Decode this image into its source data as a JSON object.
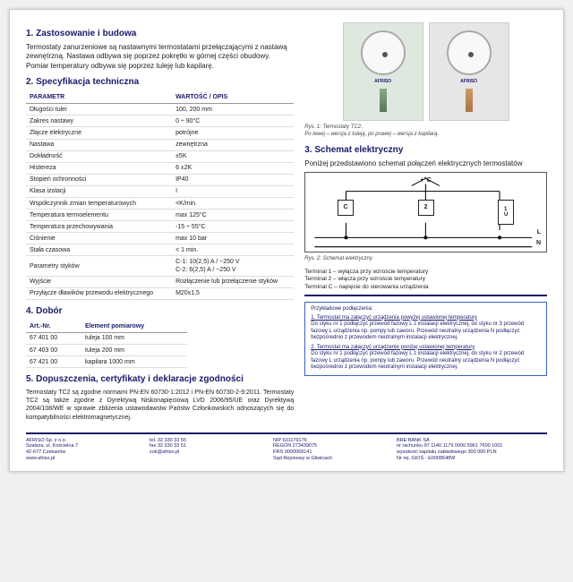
{
  "h1": "1. Zastosowanie i budowa",
  "intro": "Termostaty zanurzeniowe są nastawnymi termostatami przełączającymi z nastawą zewnętrzną. Nastawa odbywa się poprzez pokrętło w górnej części obudowy. Pomiar temperatury odbywa się poprzez tuleję lub kapilarę.",
  "h2": "2. Specyfikacja techniczna",
  "spec_headers": [
    "PARAMETR",
    "WARTOŚĆ / OPIS"
  ],
  "spec_rows": [
    [
      "Długości tulei",
      "100, 200 mm"
    ],
    [
      "Zakres nastawy",
      "0 ÷ 90°C"
    ],
    [
      "Złącze elektryczne",
      "potrójne"
    ],
    [
      "Nastawa",
      "zewnętrzna"
    ],
    [
      "Dokładność",
      "±5K"
    ],
    [
      "Histereza",
      "6 ±2K"
    ],
    [
      "Stopień ochronności",
      "IP40"
    ],
    [
      "Klasa izolacji",
      "I"
    ],
    [
      "Współczynnik zmian temperaturowych",
      "<K/min."
    ],
    [
      "Temperatura termoelementu",
      "max 125°C"
    ],
    [
      "Temperatura przechowywania",
      "-15 ÷ 55°C"
    ],
    [
      "Ciśnienie",
      "max 10 bar"
    ],
    [
      "Stała czasowa",
      "< 1 min."
    ],
    [
      "Parametry styków",
      "C-1: 10(2,5) A / ~250 V\nC-2: 6(2,5) A / ~250 V"
    ],
    [
      "Wyjście",
      "Rozłączenie lub przełączenie styków"
    ],
    [
      "Przyłącze dławików przewodu elektrycznego",
      "M20x1,5"
    ]
  ],
  "fig1_caption": "Rys. 1: Termostaty TC2.\nPo lewej – wersja z tuleją, po prawej – wersja z kapilarą.",
  "brand": "AFRISO",
  "h3": "3. Schemat elektryczny",
  "schem_intro": "Poniżej przedstawiono schemat połączeń elektrycznych termostatów",
  "schem_top": "+°C",
  "term_c": "C",
  "term_2": "2",
  "term_1_box": "1\nU",
  "term_L": "L",
  "term_N": "N",
  "fig2_caption": "Rys. 2: Schemat elektryczny",
  "terminal1": "Terminal 1 – wyłącza przy wzroście temperatury",
  "terminal2": "Terminal 2 – włącza przy wzroście temperatury",
  "terminalC": "Terminal C – napięcie do sterowania urządzenia",
  "h4": "4. Dobór",
  "dobor_headers": [
    "Art.-Nr.",
    "Element pomiarowy"
  ],
  "dobor_rows": [
    [
      "67 401 00",
      "tuleja 100 mm"
    ],
    [
      "67 403 00",
      "tuleja 200 mm"
    ],
    [
      "67 421 00",
      "kapilara 1000 mm"
    ]
  ],
  "h5": "5. Dopuszczenia, certyfikaty i deklaracje zgodności",
  "cert_text": "Termostaty TC2 są zgodne normami PN-EN 60730-1:2012 i PN-EN 60730-2-9:2011. Termostaty TC2 są także zgodne z Dyrektywą Niskonapięciową LVD 2006/95/UE oraz Dyrektywą 2004/108/WE w sprawie zbliżenia ustawodawstw Państw Członkowskich odnoszących się do kompatybilności elektromagnetycznej.",
  "example_title": "Przykładowe podłączenia:",
  "example1_u": "1. Termostat ma załączyć urządzenia powyżej ustawionej temperatury",
  "example1_txt": "Do styku nr 1 podłączyć przewód fazowy L z instalacji elektrycznej, do styku nr 3 przewód fazowy L urządzenia np. pompy lub zaworu. Przewód neutralny urządzenia N podłączyć bezpośrednio z przewodem neutralnym instalacji elektrycznej.",
  "example2_u": "2. Termostat ma załączyć urządzenie poniżej ustawionej temperatury",
  "example2_txt": "Do styku nr 1 podłączyć przewód fazowy L z instalacji elektrycznej, do styku nr 2 przewód fazowy L urządzenia np. pompy lub zaworu. Przewód neutralny urządzenia N podłączyć bezpośrednio z przewodem neutralnym instalacji elektrycznej.",
  "footer": {
    "c1": "AFRISO Sp. z o.o.\nSzałsza, ul. Kościelna 7\n42-677 Czekanów\nwww.afriso.pl",
    "c2": "tel. 32 330 33 55\nfax 32 330 33 51\nzok@afriso.pl",
    "c3": "NIP 631179176\nREGON 273439075\nKRS 0000068141\nSąd Rejonowy w Gliwicach",
    "c4": "BRE BANK SA\nnr rachunku 97 1140 1179 0000 5961 7600 1001\nwysokość kapitału zakładowego 300 000 PLN\nNr rej. GIOŚ - E0008548W"
  }
}
